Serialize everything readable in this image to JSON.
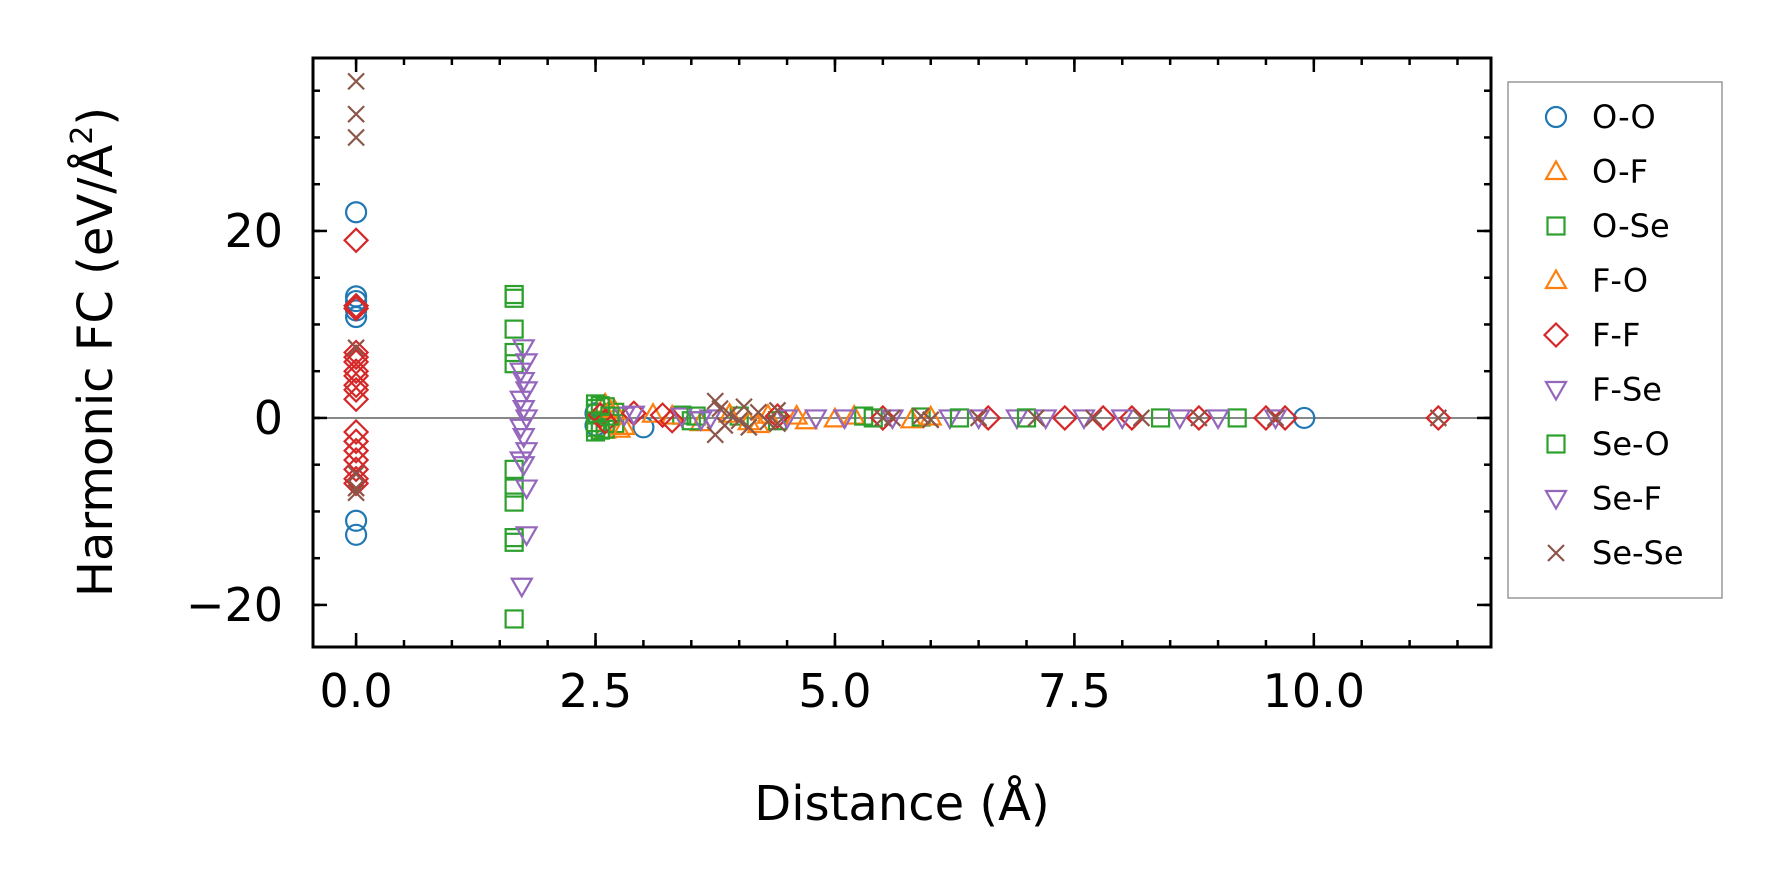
{
  "chart_data": {
    "type": "scatter",
    "title": "",
    "xlabel": "Distance (Å)",
    "ylabel_main": "Harmonic FC (eV/Å",
    "ylabel_sup": "2",
    "ylabel_close": ")",
    "xlim": [
      -0.45,
      11.85
    ],
    "ylim": [
      -24.5,
      38.5
    ],
    "xticks": [
      {
        "value": 0.0,
        "label": "0.0"
      },
      {
        "value": 2.5,
        "label": "2.5"
      },
      {
        "value": 5.0,
        "label": "5.0"
      },
      {
        "value": 7.5,
        "label": "7.5"
      },
      {
        "value": 10.0,
        "label": "10.0"
      }
    ],
    "yticks": [
      {
        "value": -20,
        "label": "−20"
      },
      {
        "value": 0,
        "label": "0"
      },
      {
        "value": 20,
        "label": "20"
      }
    ],
    "x_minor_step": 0.5,
    "y_minor_step": 5,
    "zero_line": true,
    "legend_position": "right outside",
    "series": [
      {
        "name": "O-O",
        "marker": "circle",
        "color": "#1f77b4",
        "points": [
          [
            0,
            22
          ],
          [
            0,
            13
          ],
          [
            0,
            12.5
          ],
          [
            0,
            11.5
          ],
          [
            0,
            10.8
          ],
          [
            0,
            -11
          ],
          [
            0,
            -12.5
          ],
          [
            3.0,
            -1
          ],
          [
            9.9,
            0
          ],
          [
            2.5,
            0.5
          ],
          [
            2.5,
            -0.8
          ]
        ]
      },
      {
        "name": "O-F",
        "marker": "triangle-up",
        "color": "#ff7f0e",
        "points": [
          [
            2.6,
            1.5
          ],
          [
            2.6,
            -1.3
          ],
          [
            2.7,
            0.8
          ],
          [
            2.75,
            -1.2
          ],
          [
            3.1,
            0.4
          ],
          [
            3.6,
            -0.5
          ],
          [
            4.3,
            0.3
          ],
          [
            4.2,
            -0.7
          ],
          [
            4.7,
            -0.3
          ],
          [
            5.2,
            0.2
          ],
          [
            5.8,
            -0.2
          ]
        ]
      },
      {
        "name": "O-Se",
        "marker": "square",
        "color": "#2ca02c",
        "points": [
          [
            1.65,
            13.2
          ],
          [
            1.65,
            12.8
          ],
          [
            1.65,
            9.5
          ],
          [
            1.65,
            7.0
          ],
          [
            1.65,
            5.8
          ],
          [
            1.65,
            -5.5
          ],
          [
            1.65,
            -7.5
          ],
          [
            1.65,
            -9.0
          ],
          [
            1.65,
            -12.8
          ],
          [
            1.65,
            -13.3
          ],
          [
            1.65,
            -21.5
          ],
          [
            2.5,
            1.5
          ],
          [
            2.5,
            1.0
          ],
          [
            2.5,
            0.5
          ],
          [
            2.5,
            -0.5
          ],
          [
            2.5,
            -1.0
          ],
          [
            2.5,
            -1.5
          ],
          [
            2.6,
            1.2
          ],
          [
            2.6,
            -1.2
          ],
          [
            2.7,
            0.6
          ],
          [
            2.7,
            -0.6
          ],
          [
            3.4,
            0.3
          ],
          [
            3.5,
            -0.3
          ],
          [
            4.0,
            0.2
          ],
          [
            4.4,
            -0.3
          ],
          [
            5.3,
            0.2
          ],
          [
            5.9,
            0.1
          ],
          [
            9.2,
            0
          ]
        ]
      },
      {
        "name": "F-O",
        "marker": "triangle-up",
        "color": "#ff7f0e",
        "points": [
          [
            2.65,
            0.9
          ],
          [
            2.8,
            -0.9
          ],
          [
            3.3,
            0.2
          ],
          [
            3.9,
            0.4
          ],
          [
            4.1,
            -0.4
          ],
          [
            4.6,
            0.2
          ],
          [
            5.0,
            -0.1
          ],
          [
            6.0,
            0.1
          ]
        ]
      },
      {
        "name": "F-F",
        "marker": "diamond",
        "color": "#d62728",
        "points": [
          [
            0,
            19
          ],
          [
            0,
            12
          ],
          [
            0,
            11.7
          ],
          [
            0,
            7
          ],
          [
            0,
            6.5
          ],
          [
            0,
            6
          ],
          [
            0,
            5
          ],
          [
            0,
            4.5
          ],
          [
            0,
            3.5
          ],
          [
            0,
            3
          ],
          [
            0,
            2
          ],
          [
            0,
            -1.5
          ],
          [
            0,
            -2.5
          ],
          [
            0,
            -3.5
          ],
          [
            0,
            -4.5
          ],
          [
            0,
            -5.5
          ],
          [
            0,
            -6.5
          ],
          [
            0,
            -7
          ],
          [
            2.55,
            0.3
          ],
          [
            2.6,
            -0.4
          ],
          [
            2.9,
            0.5
          ],
          [
            3.2,
            0.3
          ],
          [
            3.3,
            -0.3
          ],
          [
            4.4,
            0.2
          ],
          [
            5.5,
            0
          ],
          [
            6.6,
            0
          ],
          [
            7.4,
            0
          ],
          [
            7.8,
            0
          ],
          [
            8.1,
            0
          ],
          [
            8.8,
            0
          ],
          [
            9.5,
            0
          ],
          [
            9.7,
            0
          ],
          [
            11.3,
            0
          ]
        ]
      },
      {
        "name": "F-Se",
        "marker": "triangle-down",
        "color": "#9467bd",
        "points": [
          [
            1.75,
            7.5
          ],
          [
            1.78,
            6.0
          ],
          [
            1.72,
            5.0
          ],
          [
            1.75,
            4.0
          ],
          [
            1.78,
            3.0
          ],
          [
            1.72,
            2.0
          ],
          [
            1.75,
            1.0
          ],
          [
            1.78,
            0
          ],
          [
            1.72,
            -1.0
          ],
          [
            1.75,
            -2.0
          ],
          [
            1.78,
            -3.5
          ],
          [
            1.72,
            -4.5
          ],
          [
            1.75,
            -5.0
          ],
          [
            1.78,
            -7.5
          ],
          [
            1.78,
            -12.5
          ],
          [
            1.73,
            -18
          ],
          [
            2.8,
            0.3
          ],
          [
            3.4,
            0.2
          ],
          [
            3.7,
            0
          ],
          [
            4.5,
            0
          ],
          [
            5.1,
            0
          ],
          [
            6.2,
            0
          ],
          [
            6.9,
            0
          ],
          [
            7.6,
            0
          ]
        ]
      },
      {
        "name": "Se-O",
        "marker": "square",
        "color": "#2ca02c",
        "points": [
          [
            2.55,
            1.3
          ],
          [
            2.55,
            -1.3
          ],
          [
            2.65,
            0.2
          ],
          [
            3.55,
            0.2
          ],
          [
            5.4,
            0
          ],
          [
            6.3,
            0
          ],
          [
            7.0,
            0
          ],
          [
            8.4,
            0
          ]
        ]
      },
      {
        "name": "Se-F",
        "marker": "triangle-down",
        "color": "#9467bd",
        "points": [
          [
            2.9,
            0.4
          ],
          [
            3.6,
            -0.2
          ],
          [
            4.8,
            0
          ],
          [
            5.6,
            0
          ],
          [
            6.5,
            0
          ],
          [
            7.2,
            0
          ],
          [
            8.0,
            0
          ],
          [
            8.6,
            0
          ],
          [
            9.0,
            0
          ],
          [
            9.6,
            0
          ]
        ]
      },
      {
        "name": "Se-Se",
        "marker": "x",
        "color": "#8c564b",
        "points": [
          [
            0,
            36
          ],
          [
            0,
            32.5
          ],
          [
            0,
            30
          ],
          [
            0,
            7.5
          ],
          [
            0,
            -6
          ],
          [
            0,
            -7.5
          ],
          [
            0,
            -8
          ],
          [
            3.75,
            1.8
          ],
          [
            3.75,
            -1.8
          ],
          [
            3.8,
            1.0
          ],
          [
            3.85,
            -0.8
          ],
          [
            3.9,
            0.4
          ],
          [
            4.0,
            -0.3
          ],
          [
            4.05,
            1.2
          ],
          [
            4.1,
            -1.0
          ],
          [
            4.2,
            0.6
          ],
          [
            4.3,
            -0.4
          ],
          [
            4.4,
            0.8
          ],
          [
            4.4,
            -0.6
          ],
          [
            5.5,
            0
          ],
          [
            5.6,
            0
          ],
          [
            5.9,
            0.2
          ],
          [
            6.0,
            -0.2
          ],
          [
            6.5,
            0
          ],
          [
            7.1,
            0
          ],
          [
            7.7,
            0
          ],
          [
            8.2,
            0
          ],
          [
            8.8,
            0
          ],
          [
            9.6,
            0
          ],
          [
            11.3,
            0
          ]
        ]
      }
    ]
  }
}
